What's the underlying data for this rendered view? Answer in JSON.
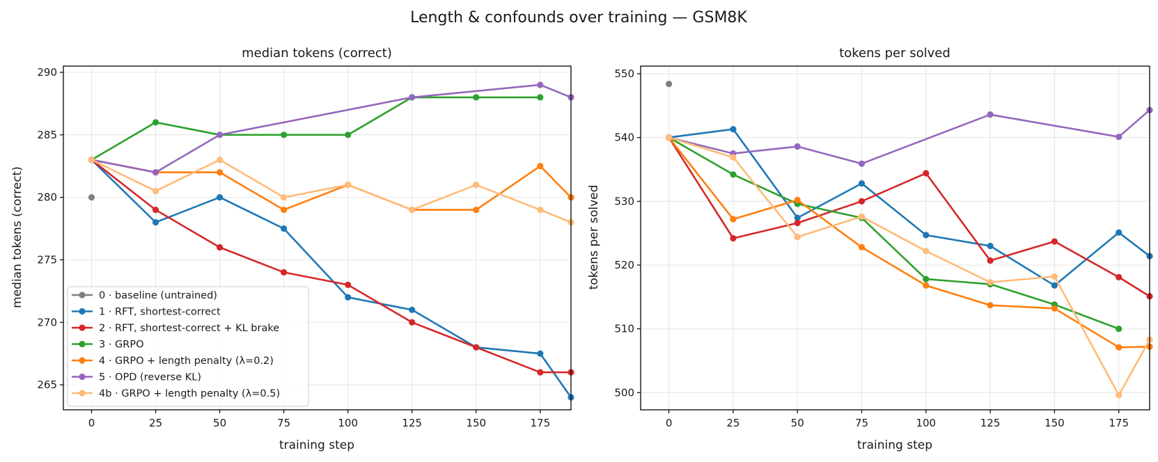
{
  "suptitle": "Length & confounds over training — GSM8K",
  "colors": {
    "0": "#7f7f7f",
    "1": "#1f77b4",
    "2": "#d62728",
    "3": "#2ca02c",
    "4": "#ff7f0e",
    "5": "#9467bd",
    "4b": "#ffbb78"
  },
  "chart_data": [
    {
      "type": "line",
      "title": "median tokens (correct)",
      "xlabel": "training step",
      "ylabel": "median tokens (correct)",
      "xlim": [
        -11,
        187
      ],
      "ylim": [
        263,
        290.5
      ],
      "xticks": [
        0,
        25,
        50,
        75,
        100,
        125,
        150,
        175
      ],
      "yticks": [
        265,
        270,
        275,
        280,
        285,
        290
      ],
      "grid": true,
      "legend_location": "lower-left",
      "series": [
        {
          "id": "0",
          "name": "0 · baseline (untrained)",
          "x": [
            0
          ],
          "y": [
            280
          ]
        },
        {
          "id": "1",
          "name": "1 · RFT, shortest-correct",
          "x": [
            0,
            25,
            50,
            75,
            100,
            125,
            150,
            175,
            187
          ],
          "y": [
            283,
            278,
            280,
            277.5,
            272,
            271,
            268,
            267.5,
            264
          ]
        },
        {
          "id": "2",
          "name": "2 · RFT, shortest-correct + KL brake",
          "x": [
            0,
            25,
            50,
            75,
            100,
            125,
            150,
            175,
            187
          ],
          "y": [
            283,
            279,
            276,
            274,
            273,
            270,
            268,
            266,
            266
          ]
        },
        {
          "id": "3",
          "name": "3 · GRPO",
          "x": [
            0,
            25,
            50,
            75,
            100,
            125,
            150,
            175
          ],
          "y": [
            283,
            286,
            285,
            285,
            285,
            288,
            288,
            288
          ]
        },
        {
          "id": "4",
          "name": "4 · GRPO + length penalty (λ=0.2)",
          "x": [
            0,
            25,
            50,
            75,
            100,
            125,
            150,
            175,
            187
          ],
          "y": [
            283,
            282,
            282,
            279,
            281,
            279,
            279,
            282.5,
            280
          ]
        },
        {
          "id": "5",
          "name": "5 · OPD (reverse KL)",
          "x": [
            0,
            25,
            50,
            125,
            175,
            187
          ],
          "y": [
            283,
            282,
            285,
            288,
            289,
            288
          ]
        },
        {
          "id": "4b",
          "name": "4b · GRPO + length penalty (λ=0.5)",
          "x": [
            0,
            25,
            50,
            75,
            100,
            125,
            150,
            175,
            187
          ],
          "y": [
            283,
            280.5,
            283,
            280,
            281,
            279,
            281,
            279,
            278
          ]
        }
      ]
    },
    {
      "type": "line",
      "title": "tokens per solved",
      "xlabel": "training step",
      "ylabel": "tokens per solved",
      "xlim": [
        -11,
        187
      ],
      "ylim": [
        497.3,
        551.2
      ],
      "xticks": [
        0,
        25,
        50,
        75,
        100,
        125,
        150,
        175
      ],
      "yticks": [
        500,
        510,
        520,
        530,
        540,
        550
      ],
      "grid": true,
      "series": [
        {
          "id": "0",
          "x": [
            0
          ],
          "y": [
            548.4
          ]
        },
        {
          "id": "1",
          "x": [
            0,
            25,
            50,
            75,
            100,
            125,
            150,
            175,
            187
          ],
          "y": [
            540,
            541.3,
            527.4,
            532.8,
            524.7,
            523,
            516.8,
            525.1,
            521.4
          ]
        },
        {
          "id": "2",
          "x": [
            0,
            25,
            50,
            75,
            100,
            125,
            150,
            175,
            187
          ],
          "y": [
            540,
            524.2,
            526.6,
            530,
            534.4,
            520.7,
            523.7,
            518.1,
            515.1
          ]
        },
        {
          "id": "3",
          "x": [
            0,
            25,
            50,
            75,
            100,
            125,
            150,
            175
          ],
          "y": [
            540,
            534.2,
            529.6,
            527.4,
            517.8,
            517,
            513.8,
            510
          ]
        },
        {
          "id": "4",
          "x": [
            0,
            25,
            50,
            75,
            100,
            125,
            150,
            175,
            187
          ],
          "y": [
            540,
            527.2,
            530.2,
            522.8,
            516.8,
            513.7,
            513.2,
            507.1,
            507.2
          ]
        },
        {
          "id": "5",
          "x": [
            0,
            25,
            50,
            75,
            125,
            175,
            187
          ],
          "y": [
            540,
            537.5,
            538.6,
            535.9,
            543.6,
            540.1,
            544.3
          ]
        },
        {
          "id": "4b",
          "x": [
            0,
            25,
            50,
            75,
            100,
            125,
            150,
            175,
            187
          ],
          "y": [
            540,
            536.9,
            524.4,
            527.6,
            522.2,
            517.3,
            518.2,
            499.6,
            508.3
          ]
        }
      ]
    }
  ]
}
